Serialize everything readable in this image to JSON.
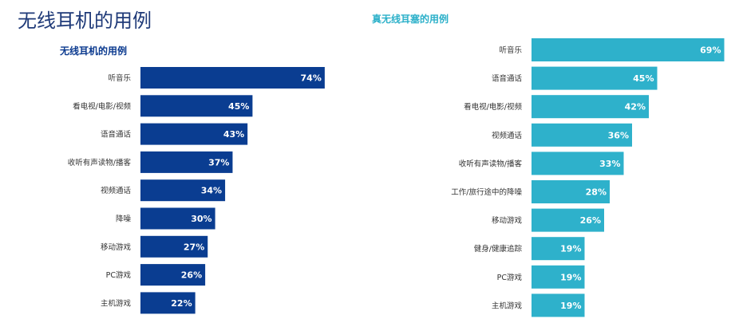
{
  "header": {
    "title": "无线耳机的用例"
  },
  "colors": {
    "left_bar": "#0a3d91",
    "right_bar": "#2eb1cb"
  },
  "chart_data": [
    {
      "type": "bar",
      "orientation": "horizontal",
      "title": "无线耳机的用例",
      "categories": [
        "听音乐",
        "看电视/电影/视频",
        "语音通话",
        "收听有声读物/播客",
        "视频通话",
        "降噪",
        "移动游戏",
        "PC游戏",
        "主机游戏"
      ],
      "values": [
        74,
        45,
        43,
        37,
        34,
        30,
        27,
        26,
        22
      ],
      "value_labels": [
        "74%",
        "45%",
        "43%",
        "37%",
        "34%",
        "30%",
        "27%",
        "26%",
        "22%"
      ],
      "xlim": [
        0,
        100
      ]
    },
    {
      "type": "bar",
      "orientation": "horizontal",
      "title": "真无线耳塞的用例",
      "categories": [
        "听音乐",
        "语音通话",
        "看电视/电影/视频",
        "视频通话",
        "收听有声读物/播客",
        "工作/旅行途中的降噪",
        "移动游戏",
        "健身/健康追踪",
        "PC游戏",
        "主机游戏"
      ],
      "values": [
        69,
        45,
        42,
        36,
        33,
        28,
        26,
        19,
        19,
        19
      ],
      "value_labels": [
        "69%",
        "45%",
        "42%",
        "36%",
        "33%",
        "28%",
        "26%",
        "19%",
        "19%",
        "19%"
      ],
      "xlim": [
        0,
        100
      ]
    }
  ]
}
